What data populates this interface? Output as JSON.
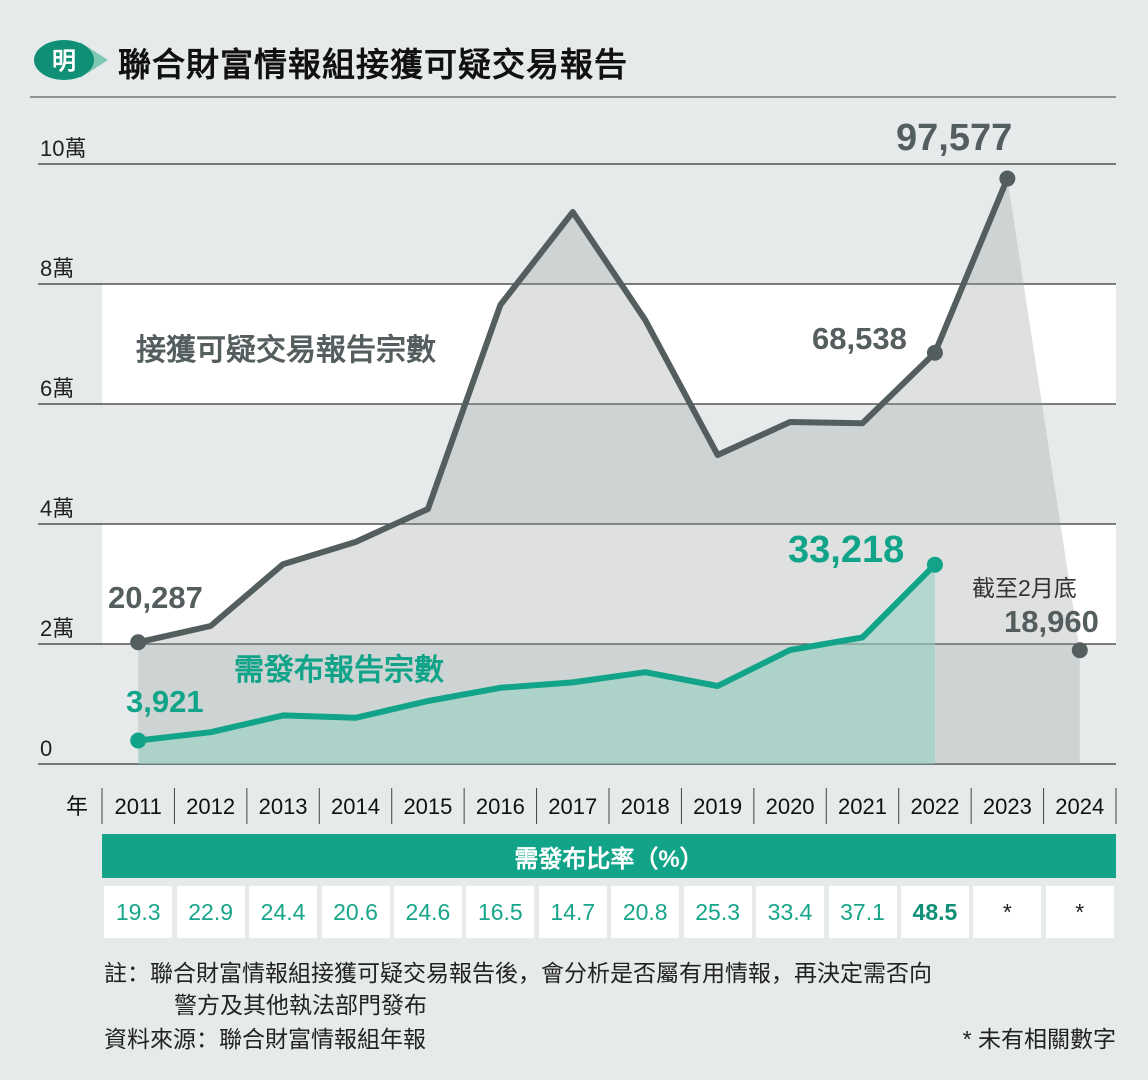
{
  "header": {
    "logo_text": "明",
    "title": "聯合財富情報組接獲可疑交易報告"
  },
  "chart_data": {
    "type": "line",
    "x": [
      "2011",
      "2012",
      "2013",
      "2014",
      "2015",
      "2016",
      "2017",
      "2018",
      "2019",
      "2020",
      "2021",
      "2022",
      "2023",
      "2024"
    ],
    "x_axis_label": "年",
    "y_ticks": [
      "0",
      "2萬",
      "4萬",
      "6萬",
      "8萬",
      "10萬"
    ],
    "ylim": [
      0,
      100000
    ],
    "grid": "horizontal bands",
    "series": [
      {
        "name": "接獲可疑交易報告宗數",
        "color": "#555e5e",
        "values": [
          20287,
          23000,
          33300,
          37000,
          42500,
          76500,
          92000,
          74000,
          51500,
          57000,
          56800,
          68538,
          97577,
          18960
        ]
      },
      {
        "name": "需發布報告宗數",
        "color": "#11a489",
        "values": [
          3921,
          5300,
          8100,
          7700,
          10500,
          12700,
          13600,
          15300,
          13000,
          19000,
          21100,
          33218,
          null,
          null
        ]
      }
    ],
    "annotations": {
      "start_total": "20,287",
      "total_2022": "68,538",
      "total_2023": "97,577",
      "partial_note": "截至2月底",
      "total_2024": "18,960",
      "start_published": "3,921",
      "published_2022": "33,218"
    }
  },
  "ratio_table": {
    "header": "需發布比率（%）",
    "values": [
      "19.3",
      "22.9",
      "24.4",
      "20.6",
      "24.6",
      "16.5",
      "14.7",
      "20.8",
      "25.3",
      "33.4",
      "37.1",
      "48.5",
      "*",
      "*"
    ],
    "highlight_index": 11
  },
  "notes": {
    "note_line1": "註：聯合財富情報組接獲可疑交易報告後，會分析是否屬有用情報，再決定需否向",
    "note_line2": "警方及其他執法部門發布",
    "source": "資料來源：聯合財富情報組年報",
    "footnote": "* 未有相關數字"
  },
  "colors": {
    "background": "#e6eaea",
    "total_line": "#555e5e",
    "published_line": "#11a489",
    "header_band": "#11a489"
  }
}
